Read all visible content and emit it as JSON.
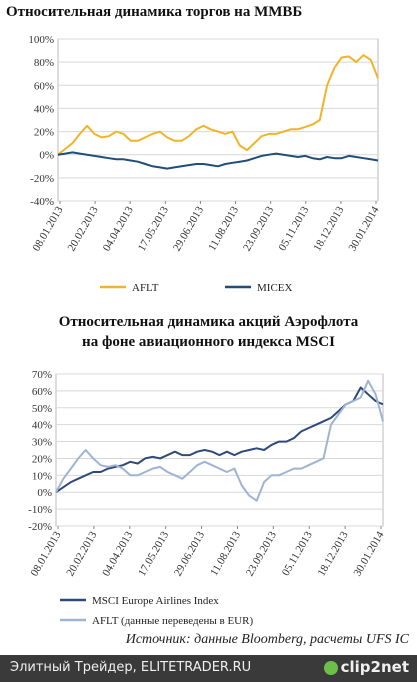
{
  "chart1_title": "Относительная динамика торгов на ММВБ",
  "chart2_title_line1": "Относительная динамика акций Аэрофлота",
  "chart2_title_line2": "на фоне авиационного индекса MSCI",
  "source_text": "Источник: данные Bloomberg, расчеты UFS IC",
  "footer": {
    "left_text": "Элитный Трейдер, ELITETRADER.RU",
    "brand": "clip2net"
  },
  "colors": {
    "aflt": "#f0b429",
    "micex": "#1f4e79",
    "msci": "#2e4a7a",
    "aflt_eur": "#9fb3d4"
  },
  "chart_data": [
    {
      "type": "line",
      "title": "Относительная динамика торгов на ММВБ",
      "x_labels": [
        "08.01.2013",
        "20.02.2013",
        "04.04.2013",
        "17.05.2013",
        "29.06.2013",
        "11.08.2013",
        "23.09.2013",
        "05.11.2013",
        "18.12.2013",
        "30.01.2014"
      ],
      "y_ticks": [
        "100%",
        "80%",
        "60%",
        "40%",
        "20%",
        "0%",
        "-20%",
        "-40%"
      ],
      "ylim": [
        -40,
        100
      ],
      "grid": true,
      "legend": "bottom",
      "series": [
        {
          "name": "AFLT",
          "values": [
            0,
            5,
            10,
            18,
            25,
            18,
            15,
            16,
            20,
            18,
            12,
            12,
            15,
            18,
            20,
            15,
            12,
            12,
            16,
            22,
            25,
            22,
            20,
            18,
            20,
            8,
            4,
            10,
            16,
            18,
            18,
            20,
            22,
            22,
            24,
            26,
            30,
            60,
            75,
            84,
            85,
            80,
            86,
            82,
            66
          ]
        },
        {
          "name": "MICEX",
          "values": [
            0,
            1,
            2,
            1,
            0,
            -1,
            -2,
            -3,
            -4,
            -4,
            -5,
            -6,
            -8,
            -10,
            -11,
            -12,
            -11,
            -10,
            -9,
            -8,
            -8,
            -9,
            -10,
            -8,
            -7,
            -6,
            -5,
            -3,
            -1,
            0,
            1,
            0,
            -1,
            -2,
            -1,
            -3,
            -4,
            -2,
            -3,
            -3,
            -1,
            -2,
            -3,
            -4,
            -5
          ]
        }
      ]
    },
    {
      "type": "line",
      "title": "Относительная динамика акций Аэрофлота на фоне авиационного индекса MSCI",
      "x_labels": [
        "08.01.2013",
        "20.02.2013",
        "04.04.2013",
        "17.05.2013",
        "29.06.2013",
        "11.08.2013",
        "23.09.2013",
        "05.11.2013",
        "18.12.2013",
        "30.01.2014"
      ],
      "y_ticks": [
        "70%",
        "60%",
        "50%",
        "40%",
        "30%",
        "20%",
        "10%",
        "0%",
        "-10%",
        "-20%"
      ],
      "ylim": [
        -20,
        70
      ],
      "grid": true,
      "legend": "bottom",
      "series": [
        {
          "name": "MSCI Europe Airlines Index",
          "values": [
            0,
            3,
            6,
            8,
            10,
            12,
            12,
            14,
            15,
            16,
            18,
            17,
            20,
            21,
            20,
            22,
            24,
            22,
            22,
            24,
            25,
            24,
            22,
            24,
            22,
            24,
            25,
            26,
            25,
            28,
            30,
            30,
            32,
            36,
            38,
            40,
            42,
            44,
            48,
            52,
            54,
            62,
            58,
            54,
            52
          ]
        },
        {
          "name": "AFLT (данные переведены в EUR)",
          "values": [
            0,
            8,
            14,
            20,
            25,
            20,
            16,
            15,
            16,
            14,
            10,
            10,
            12,
            14,
            15,
            12,
            10,
            8,
            12,
            16,
            18,
            16,
            14,
            12,
            14,
            4,
            -2,
            -5,
            6,
            10,
            10,
            12,
            14,
            14,
            16,
            18,
            20,
            40,
            46,
            52,
            54,
            56,
            66,
            58,
            42
          ]
        }
      ]
    }
  ]
}
